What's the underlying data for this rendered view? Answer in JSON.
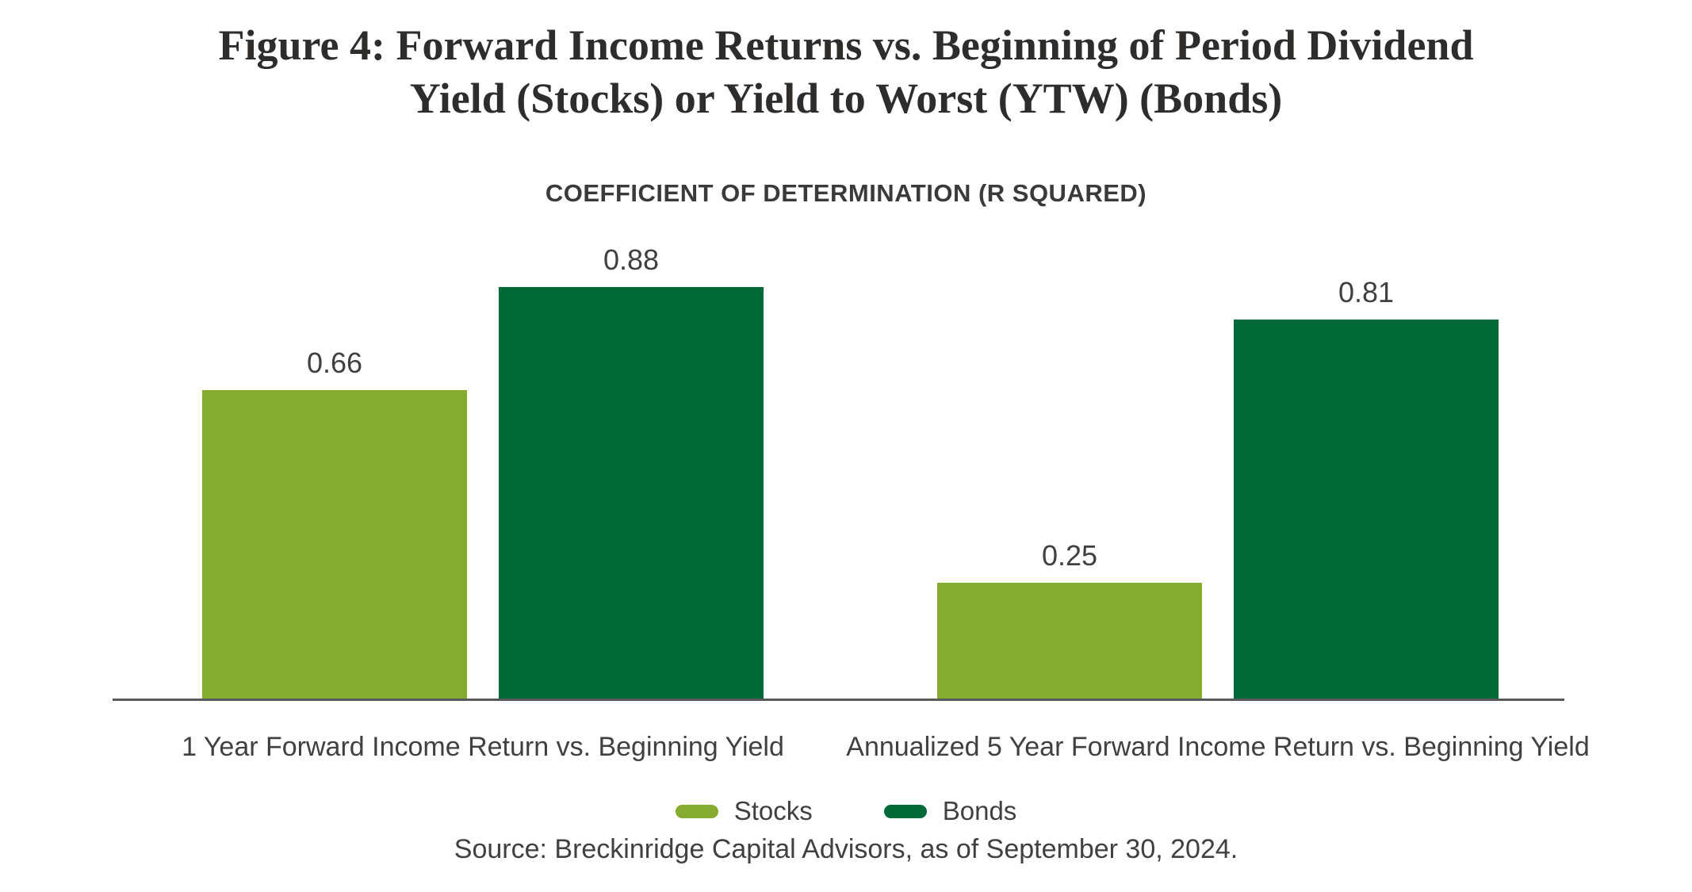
{
  "figure": {
    "title": "Figure 4: Forward Income Returns vs. Beginning of Period Dividend\nYield (Stocks) or Yield to Worst (YTW) (Bonds)",
    "subtitle": "COEFFICIENT OF DETERMINATION (R SQUARED)",
    "source": "Source: Breckinridge Capital Advisors, as of September 30, 2024."
  },
  "colors": {
    "stocks": "#86AC2F",
    "bonds": "#006938",
    "axis_line": "#58595B",
    "title_text": "#2E2D2B",
    "label_text": "#3F4042"
  },
  "chart_data": {
    "type": "bar",
    "title": "COEFFICIENT OF DETERMINATION (R SQUARED)",
    "categories": [
      "1 Year Forward Income Return vs. Beginning Yield",
      "Annualized 5 Year Forward Income Return vs. Beginning Yield"
    ],
    "series": [
      {
        "name": "Stocks",
        "color": "#86AC2F",
        "values": [
          0.66,
          0.25
        ]
      },
      {
        "name": "Bonds",
        "color": "#006938",
        "values": [
          0.88,
          0.81
        ]
      }
    ],
    "value_labels": [
      [
        "0.66",
        "0.25"
      ],
      [
        "0.88",
        "0.81"
      ]
    ],
    "xlabel": "",
    "ylabel": "",
    "ylim": [
      0,
      1
    ],
    "grid": false,
    "legend_position": "bottom"
  }
}
